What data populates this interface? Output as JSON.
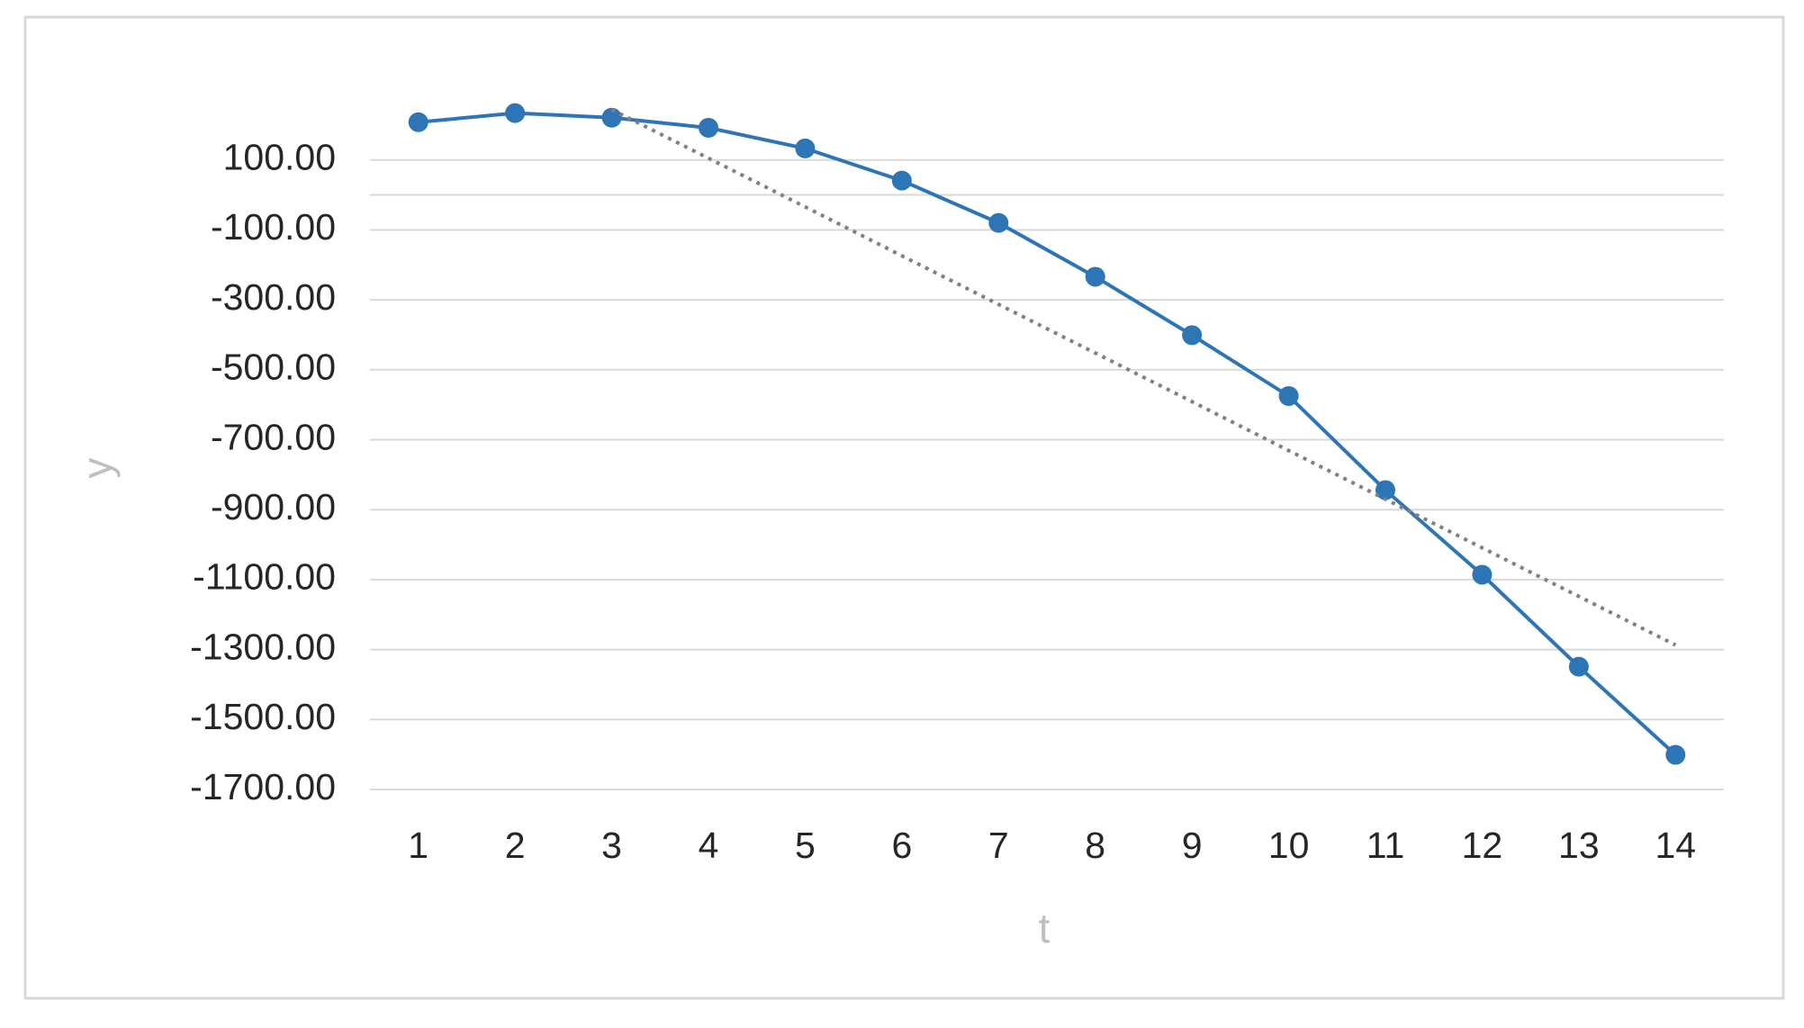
{
  "chart_data": {
    "type": "line",
    "x_label": "t",
    "y_label": "y",
    "categories": [
      "1",
      "2",
      "3",
      "4",
      "5",
      "6",
      "7",
      "8",
      "9",
      "10",
      "11",
      "12",
      "13",
      "14"
    ],
    "series": [
      {
        "color": "#2e75b6",
        "values": [
          208,
          234,
          221,
          192,
          133,
          41,
          -80,
          -234,
          -401,
          -575,
          -844,
          -1086,
          -1349,
          -1601
        ]
      },
      {
        "color": "#808080",
        "dash": "dotted",
        "values": [
          null,
          null,
          244,
          105,
          -34,
          -174,
          -313,
          -452,
          -591,
          -731,
          -870,
          -1009,
          -1148,
          -1287
        ]
      }
    ],
    "ylim": [
      -1700,
      300
    ],
    "yticks": [
      {
        "value": 100,
        "label": "100.00"
      },
      {
        "value": -100,
        "label": "-100.00"
      },
      {
        "value": -300,
        "label": "-300.00"
      },
      {
        "value": -500,
        "label": "-500.00"
      },
      {
        "value": -700,
        "label": "-700.00"
      },
      {
        "value": -900,
        "label": "-900.00"
      },
      {
        "value": -1100,
        "label": "-1100.00"
      },
      {
        "value": -1300,
        "label": "-1300.00"
      },
      {
        "value": -1500,
        "label": "-1500.00"
      },
      {
        "value": -1700,
        "label": "-1700.00"
      }
    ],
    "grid": true
  }
}
